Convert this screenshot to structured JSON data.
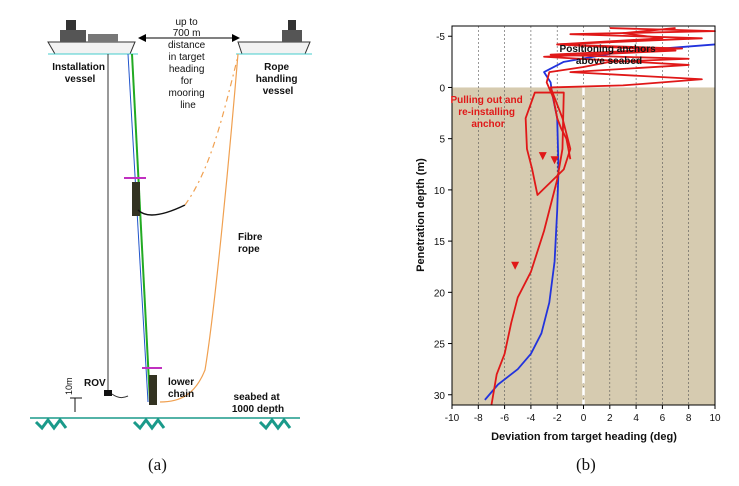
{
  "panel_a": {
    "caption": "(a)",
    "labels": {
      "installation_vessel": [
        "Installation",
        "vessel"
      ],
      "distance_note": [
        "up to",
        "700 m",
        "distance",
        "in target",
        "heading",
        "for",
        "mooring",
        "line"
      ],
      "rope_vessel": [
        "Rope",
        "handling",
        "vessel"
      ],
      "fibre_rope": [
        "Fibre",
        "rope"
      ],
      "rov": "ROV",
      "ten_m": "10m",
      "lower_chain": [
        "lower",
        "chain"
      ],
      "seabed": [
        "seabed at",
        "1000 depth"
      ]
    },
    "colors": {
      "seabed": "#1a9a8a",
      "rope": "#f0a050",
      "wire_green": "#22aa22",
      "wire_blue": "#2255cc"
    }
  },
  "panel_b": {
    "caption": "(b)",
    "annotations": {
      "positioning": [
        "Positioning anchors",
        "above seabed"
      ],
      "pulling": [
        "Pulling out and",
        "re-installing",
        "anchor"
      ]
    }
  },
  "chart_data": {
    "type": "line",
    "xlabel": "Deviation from target heading (deg)",
    "ylabel": "Penetration depth (m)",
    "xlim": [
      -10,
      10
    ],
    "ylim": [
      31,
      -6
    ],
    "y_inverted": true,
    "xticks": [
      "-10",
      "-8",
      "-6",
      "-4",
      "-2",
      "0",
      "2",
      "4",
      "6",
      "8",
      "10"
    ],
    "yticks": [
      "-5",
      "0",
      "5",
      "10",
      "15",
      "20",
      "25",
      "30"
    ],
    "grid": "dashed vertical",
    "seabed_shading_from_depth": 0,
    "target_line_x": 0,
    "colors": {
      "seabed_fill": "#d6cbb0",
      "blue_series": "#2233dd",
      "red_series": "#e01818"
    },
    "series": [
      {
        "color": "#2233dd",
        "x": [
          -7.5,
          -6.5,
          -5,
          -4,
          -3.2,
          -2.6,
          -2.2,
          -2,
          -1.9,
          -2,
          -2.4,
          -2.5,
          -3,
          -1.5,
          3,
          10
        ],
        "y": [
          30.5,
          29,
          27.5,
          26,
          24,
          21,
          17,
          12,
          8,
          3,
          0.5,
          -0.5,
          -1.5,
          -2.5,
          -3.5,
          -4.2
        ]
      },
      {
        "color": "#e01818",
        "x": [
          -7,
          -6.6,
          -6,
          -5.5,
          -5,
          -4,
          -3,
          -2,
          -1.6,
          -1.5,
          -3.7,
          -4.4,
          -4.3,
          -3.9,
          -3.5,
          -1.5,
          -1,
          -1.6,
          -2.5,
          3,
          9,
          -1,
          8,
          -3,
          7,
          -2,
          9,
          -1,
          10,
          2
        ],
        "y": [
          31,
          28,
          26,
          23,
          20.5,
          18,
          14,
          9,
          6,
          0.5,
          0.5,
          3,
          6,
          8,
          10.5,
          8,
          6,
          3,
          0,
          -0.2,
          -0.8,
          -1.5,
          -2.2,
          -3,
          -3.6,
          -4.2,
          -4.8,
          -5.2,
          -5.5,
          -5.8
        ]
      },
      {
        "color": "#e01818",
        "x": [
          -1,
          -1.3,
          -1.7,
          -2,
          -2.3,
          -2.8,
          -2.6,
          0,
          2,
          8,
          -2.5,
          7.5,
          -2,
          6,
          3,
          7
        ],
        "y": [
          7,
          5,
          4,
          3,
          1,
          -0.5,
          -1.5,
          -2,
          -2.5,
          -2.8,
          -3.2,
          -3.8,
          -4.2,
          -4.8,
          -5.3,
          -5.8
        ]
      }
    ]
  }
}
